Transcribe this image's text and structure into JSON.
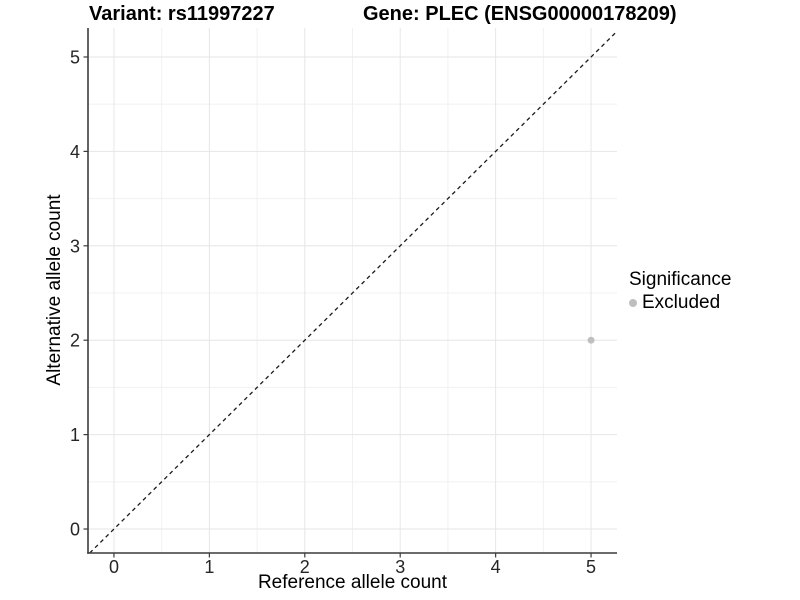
{
  "titles": {
    "variant": "Variant: rs11997227",
    "gene": "Gene: PLEC (ENSG00000178209)"
  },
  "axes": {
    "x_label": "Reference allele count",
    "y_label": "Alternative allele count"
  },
  "legend": {
    "title": "Significance",
    "items": [
      {
        "label": "Excluded",
        "color": "#bfbfbf"
      }
    ]
  },
  "chart_data": {
    "type": "scatter",
    "title": "Variant: rs11997227 | Gene: PLEC (ENSG00000178209)",
    "xlabel": "Reference allele count",
    "ylabel": "Alternative allele count",
    "xlim": [
      -0.272,
      5.272
    ],
    "ylim": [
      -0.254,
      5.307
    ],
    "x_ticks": [
      0,
      1,
      2,
      3,
      4,
      5
    ],
    "y_ticks": [
      0,
      1,
      2,
      3,
      4,
      5
    ],
    "x_minor_ticks": [
      0.5,
      1.5,
      2.5,
      3.5,
      4.5
    ],
    "y_minor_ticks": [
      0.5,
      1.5,
      2.5,
      3.5,
      4.5
    ],
    "grid": true,
    "legend_position": "right",
    "series": [
      {
        "name": "Excluded",
        "color": "#bfbfbf",
        "point_radius": 3.5,
        "points": [
          {
            "x": 5,
            "y": 2
          }
        ]
      }
    ],
    "reference_line": {
      "type": "identity",
      "style": "dashed",
      "color": "#1a1a1a"
    },
    "colors": {
      "grid_major": "#e6e6e6",
      "grid_minor": "#f1f1f1",
      "axis_line": "#3c3c3c",
      "tick_text": "#262626"
    }
  }
}
